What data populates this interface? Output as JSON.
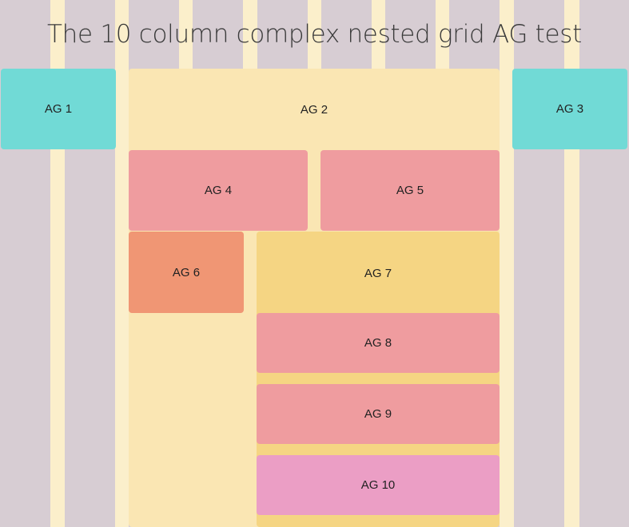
{
  "title": "The 10 column complex nested grid AG test",
  "boxes": {
    "ag1": "AG 1",
    "ag2": "AG 2",
    "ag3": "AG 3",
    "ag4": "AG 4",
    "ag5": "AG 5",
    "ag6": "AG 6",
    "ag7": "AG 7",
    "ag8": "AG 8",
    "ag9": "AG 9",
    "ag10": "AG 10"
  },
  "colors": {
    "background_stripe": "#fbefcb",
    "column": "#d7cdd3",
    "teal": "#71dad6",
    "pale_yellow": "#fae6b3",
    "salmon": "#ef9c9f",
    "orange": "#f09674",
    "yellow": "#f5d583",
    "pink": "#eb9ec5"
  }
}
